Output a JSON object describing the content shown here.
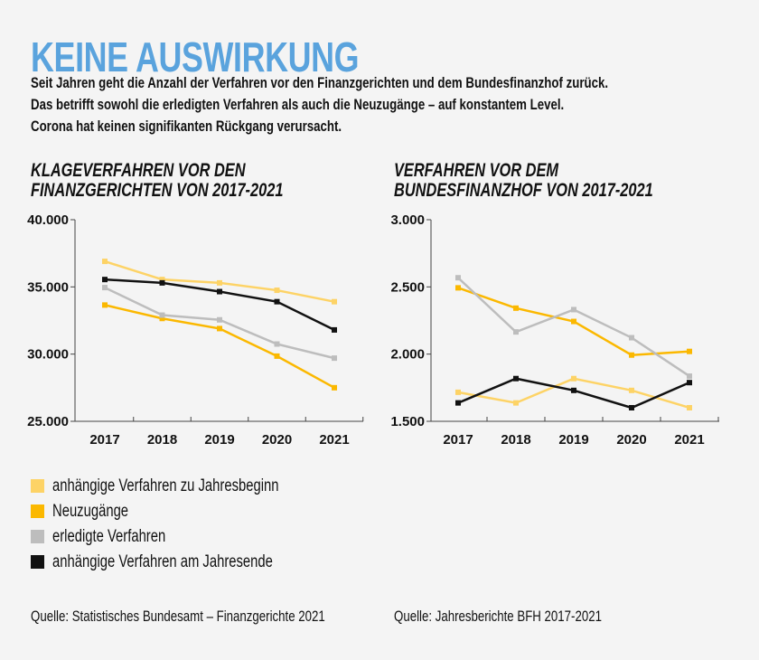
{
  "header": {
    "title": "KEINE AUSWIRKUNG",
    "subtitle_lines": [
      "Seit Jahren geht die Anzahl der Verfahren vor den Finanzgerichten und dem Bundesfinanzhof zurück.",
      "Das betrifft sowohl die erledigten Verfahren als auch die Neuzugänge – auf konstantem Level.",
      "Corona hat keinen signifikanten Rückgang verursacht."
    ]
  },
  "legend": [
    {
      "label": "anhängige Verfahren zu Jahresbeginn",
      "color": "#fdd366"
    },
    {
      "label": "Neuzugänge",
      "color": "#fbb800"
    },
    {
      "label": "erledigte Verfahren",
      "color": "#bdbdbd"
    },
    {
      "label": "anhängige Verfahren am Jahresende",
      "color": "#111111"
    }
  ],
  "sources": {
    "left": "Quelle: Statistisches Bundesamt – Finanzgerichte 2021",
    "right": "Quelle: Jahresberichte BFH 2017-2021"
  },
  "chart_data": [
    {
      "type": "line",
      "title_lines": [
        "KLAGEVERFAHREN VOR DEN",
        "FINANZGERICHTEN VON 2017-2021"
      ],
      "categories": [
        "2017",
        "2018",
        "2019",
        "2020",
        "2021"
      ],
      "ylim": [
        25000,
        40000
      ],
      "yticks": [
        25000,
        30000,
        35000,
        40000
      ],
      "ytick_labels": [
        "25.000",
        "30.000",
        "35.000",
        "40.000"
      ],
      "series": [
        {
          "name": "anhängige Verfahren zu Jahresbeginn",
          "color": "#fdd366",
          "values": [
            36900,
            35550,
            35300,
            34750,
            33900
          ]
        },
        {
          "name": "Neuzugänge",
          "color": "#fbb800",
          "values": [
            33650,
            32650,
            31900,
            29850,
            27500
          ]
        },
        {
          "name": "erledigte Verfahren",
          "color": "#bdbdbd",
          "values": [
            34950,
            32900,
            32550,
            30750,
            29700
          ]
        },
        {
          "name": "anhängige Verfahren am Jahresende",
          "color": "#111111",
          "values": [
            35550,
            35300,
            34650,
            33900,
            31800
          ]
        }
      ]
    },
    {
      "type": "line",
      "title_lines": [
        "VERFAHREN VOR DEM",
        "BUNDESFINANZHOF VON 2017-2021"
      ],
      "categories": [
        "2017",
        "2018",
        "2019",
        "2020",
        "2021"
      ],
      "ylim": [
        1500,
        3000
      ],
      "yticks": [
        1500,
        2000,
        2500,
        3000
      ],
      "ytick_labels": [
        "1.500",
        "2.000",
        "2.500",
        "3.000"
      ],
      "series": [
        {
          "name": "anhängige Verfahren zu Jahresbeginn",
          "color": "#fdd366",
          "values": [
            1716,
            1637,
            1818,
            1730,
            1601
          ]
        },
        {
          "name": "Neuzugänge",
          "color": "#fbb800",
          "values": [
            2493,
            2342,
            2243,
            1993,
            2020
          ]
        },
        {
          "name": "erledigte Verfahren",
          "color": "#bdbdbd",
          "values": [
            2568,
            2165,
            2331,
            2122,
            1836
          ]
        },
        {
          "name": "anhängige Verfahren am Jahresende",
          "color": "#111111",
          "values": [
            1637,
            1818,
            1730,
            1601,
            1788
          ]
        }
      ]
    }
  ]
}
